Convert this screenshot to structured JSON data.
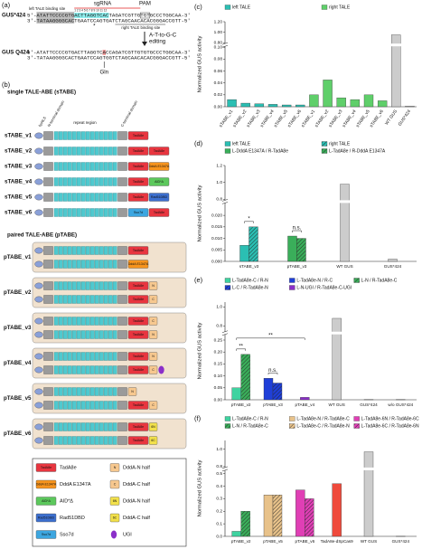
{
  "panel_a": {
    "label": "(a)",
    "seq_name": "GUS*424",
    "top_seq": "5'-ATATTCCCCGTGACTTAGGTCACTAGATCGTTGTGTGCCCTGGCAA-3'",
    "bottom_seq": "3'-TATAAGGGGCACTGAATCCAGTGATCTAGCAACACACGGGACCGTT-5'",
    "left_site": "left TALE binding site",
    "numbers": "1 2 3 4 5 6 7 8 9 10 11 12",
    "sgrna": "sgRNA",
    "pam": "PAM",
    "right_site": "right TALE binding site",
    "star": "*",
    "edit_label": [
      "A-T-to-G-C",
      "editing"
    ],
    "edited_name": "GUS Q424",
    "edited_top": "5'-ATATTCCCCGTGACTTAGGTCACCAGATCGTTGTGTGCCCTGGCAA-3'",
    "edited_bottom": "3'-TATAAGGGGCACTGAATCCAGTGGTCTAGCAACACACGGGACCGTT-5'",
    "gln": "Gln"
  },
  "panel_b": {
    "label": "(b)",
    "single_title": "single TALE-ABE (sTABE)",
    "header": [
      "bpNLS",
      "N-terminal domain",
      "repeat region",
      "C-terminal domain"
    ],
    "single": [
      {
        "name": "sTABE_v1",
        "effectors": [
          {
            "text": "TadA8e",
            "color": "#e8353f"
          }
        ]
      },
      {
        "name": "sTABE_v2",
        "effectors": [
          {
            "text": "TadA8e",
            "color": "#e8353f"
          },
          {
            "text": "TadA8e",
            "color": "#e8353f"
          }
        ]
      },
      {
        "name": "sTABE_v3",
        "effectors": [
          {
            "text": "TadA8e",
            "color": "#e8353f"
          },
          {
            "text": "DddA E1347A",
            "color": "#f7941d"
          }
        ]
      },
      {
        "name": "sTABE_v4",
        "effectors": [
          {
            "text": "TadA8e",
            "color": "#e8353f"
          },
          {
            "text": "AID*Δ",
            "color": "#5cc85c"
          }
        ]
      },
      {
        "name": "sTABE_v5",
        "effectors": [
          {
            "text": "TadA8e",
            "color": "#e8353f"
          },
          {
            "text": "Rad51DBD",
            "color": "#3c6fcf"
          }
        ]
      },
      {
        "name": "sTABE_v6",
        "effectors": [
          {
            "text": "Sso7d",
            "color": "#3ca6e0"
          },
          {
            "text": "TadA8e",
            "color": "#e8353f"
          }
        ]
      }
    ],
    "paired_title": "paired TALE-ABE (pTABE)",
    "paired": [
      {
        "name": "pTABE_v1",
        "rows": [
          [
            {
              "text": "TadA8e",
              "color": "#e8353f"
            }
          ],
          [
            {
              "text": "DddA E1347A",
              "color": "#f7941d"
            }
          ]
        ]
      },
      {
        "name": "pTABE_v2",
        "rows": [
          [
            {
              "text": "TadA8e",
              "color": "#e8353f"
            },
            {
              "text": "N",
              "color": "#f7c88f"
            }
          ],
          [
            {
              "text": "TadA8e",
              "color": "#e8353f"
            },
            {
              "text": "C",
              "color": "#f7c88f"
            }
          ]
        ]
      },
      {
        "name": "pTABE_v3",
        "rows": [
          [
            {
              "text": "TadA8e",
              "color": "#e8353f"
            },
            {
              "text": "C",
              "color": "#f7c88f"
            }
          ],
          [
            {
              "text": "TadA8e",
              "color": "#e8353f"
            },
            {
              "text": "N",
              "color": "#f7c88f"
            }
          ]
        ]
      },
      {
        "name": "pTABE_v4",
        "rows": [
          [
            {
              "text": "TadA8e",
              "color": "#e8353f"
            },
            {
              "text": "N",
              "color": "#f7c88f"
            }
          ],
          [
            {
              "text": "TadA8e",
              "color": "#e8353f"
            },
            {
              "text": "C",
              "color": "#f7c88f"
            },
            {
              "color": "#8b2fc9"
            }
          ]
        ]
      },
      {
        "name": "pTABE_v5",
        "rows": [
          [
            {
              "text": "N",
              "color": "#f7c88f"
            }
          ],
          [
            {
              "text": "TadA8e",
              "color": "#e8353f"
            },
            {
              "text": "C",
              "color": "#f7c88f"
            }
          ]
        ]
      },
      {
        "name": "pTABE_v6",
        "rows": [
          [
            {
              "text": "TadA8e",
              "color": "#e8353f"
            },
            {
              "text": "6N",
              "color": "#f2e04a"
            }
          ],
          [
            {
              "text": "TadA8e",
              "color": "#e8353f"
            },
            {
              "text": "6C",
              "color": "#f2e04a"
            }
          ]
        ]
      }
    ],
    "legend": [
      {
        "symbol": "TadA8e",
        "text": "TadA8e",
        "color": "#e8353f"
      },
      {
        "symbol": "N",
        "text": "DddA-N half",
        "color": "#f7c88f"
      },
      {
        "symbol": "DddA E1347A",
        "text": "DddA E1347A",
        "color": "#f7941d"
      },
      {
        "symbol": "C",
        "text": "DddA-C half",
        "color": "#f7c88f"
      },
      {
        "symbol": "AID*Δ",
        "text": "AID*Δ",
        "color": "#5cc85c"
      },
      {
        "symbol": "6N",
        "text": "DddA-N half",
        "color": "#f2e04a"
      },
      {
        "symbol": "Rad51DBD",
        "text": "Rad51DBD",
        "color": "#3c6fcf"
      },
      {
        "symbol": "6C",
        "text": "DddA-C half",
        "color": "#f2e04a"
      },
      {
        "symbol": "Sso7d",
        "text": "Sso7d",
        "color": "#3ca6e0"
      },
      {
        "text": "UGI",
        "color": "#8b2fc9"
      }
    ]
  },
  "chart_data": [
    {
      "type": "bar",
      "label": "(c)",
      "ylabel": "Normalized GUS activity",
      "categories": [
        "sTABE_v1",
        "sTABE_v2",
        "sTABE_v3",
        "sTABE_v4",
        "sTABE_v5",
        "sTABE_v6",
        "sTABE_v1",
        "sTABE_v2",
        "sTABE_v3",
        "sTABE_v4",
        "sTABE_v5",
        "sTABE_v6",
        "WT GUS",
        "GUS*424"
      ],
      "series": [
        {
          "name": "left TALE",
          "color": "#2bbfb3",
          "values": [
            0.012,
            0.006,
            0.005,
            0.004,
            0.003,
            0.003,
            null,
            null,
            null,
            null,
            null,
            null,
            null,
            null
          ]
        },
        {
          "name": "right TALE",
          "color": "#5fcf6a",
          "values": [
            null,
            null,
            null,
            null,
            null,
            null,
            0.02,
            0.045,
            0.015,
            0.012,
            0.02,
            0.01,
            null,
            null
          ]
        },
        {
          "color": "#cccccc",
          "values": [
            null,
            null,
            null,
            null,
            null,
            null,
            null,
            null,
            null,
            null,
            null,
            null,
            0.95,
            0.001
          ]
        }
      ],
      "ylim": [
        0,
        1.2
      ],
      "ybreak": [
        0.1,
        0.8
      ],
      "yticks": [
        {
          "value": 0,
          "label": "0.00"
        },
        0.02,
        0.04,
        0.06,
        0.08,
        {
          "value": 0.1,
          "label": "0.10"
        },
        {
          "value": 0.8,
          "label": "0.80"
        },
        {
          "value": 1,
          "label": "1.00"
        },
        {
          "value": 1.2,
          "label": "1.20"
        }
      ]
    },
    {
      "type": "bar",
      "label": "(d)",
      "ylabel": "Normalized GUS activity",
      "categories": [
        "sTABE_v3",
        "pTABE_v3",
        "WT GUS",
        "GUS*424"
      ],
      "series": [
        {
          "name": "left TALE",
          "color": "#2bbfb3",
          "values": [
            0.007,
            null,
            null,
            null
          ]
        },
        {
          "name": "right TALE",
          "color": "#2bbfb3",
          "hatch": true,
          "values": [
            0.015,
            null,
            null,
            null
          ]
        },
        {
          "name": "L-DddA E1347A / R-TadA8e",
          "color": "#3aae5a",
          "values": [
            null,
            0.011,
            null,
            null
          ]
        },
        {
          "name": "L-TadA8e / R-DddA E1347A",
          "color": "#3aae5a",
          "hatch": true,
          "values": [
            null,
            0.01,
            null,
            null
          ]
        },
        {
          "color": "#cccccc",
          "values": [
            null,
            null,
            0.98,
            0.001
          ]
        }
      ],
      "ylim": [
        0,
        1.2
      ],
      "ybreak": [
        0.025,
        0.8
      ],
      "yticks": [
        {
          "value": 0,
          "label": "0.000"
        },
        0.005,
        {
          "value": 0.01,
          "label": "0.010"
        },
        0.015,
        {
          "value": 0.02,
          "label": "0.020"
        },
        0.8,
        {
          "value": 1,
          "label": "1.0"
        },
        1.2
      ],
      "significance": [
        "*",
        "n.s.",
        null,
        null
      ]
    },
    {
      "type": "bar",
      "label": "(e)",
      "ylabel": "Normalized GUS activity",
      "categories": [
        "pTABE_v2",
        "pTABE_v3",
        "pTABE_v4",
        "WT GUS",
        "GUS*424",
        "w/o GUS*424"
      ],
      "series": [
        {
          "name": "L-TadA8e-C / R-N",
          "color": "#3fd3a0",
          "values": [
            0.05,
            null,
            null,
            null,
            null,
            null
          ]
        },
        {
          "name": "L-TadA8e-N / R-C",
          "color": "#1f3fd8",
          "values": [
            null,
            0.09,
            null,
            null,
            null,
            null
          ]
        },
        {
          "name": "L-N / R-TadA8e-C",
          "color": "#3aae5a",
          "hatch": true,
          "values": [
            0.19,
            null,
            null,
            null,
            null,
            null
          ]
        },
        {
          "name": "L-C / R-TadA8e-N",
          "color": "#1f3fd8",
          "hatch": true,
          "values": [
            null,
            0.07,
            null,
            null,
            null,
            null
          ]
        },
        {
          "name": "L-N-UGI / R-TadA8e-C-UGI",
          "color": "#8b2fc9",
          "values": [
            null,
            null,
            0.01,
            null,
            null,
            null
          ]
        },
        {
          "color": "#cccccc",
          "values": [
            null,
            null,
            null,
            0.88,
            0.001,
            0.001
          ]
        }
      ],
      "ylim": [
        0,
        1.05
      ],
      "ybreak": [
        0.27,
        0.75
      ],
      "yticks": [
        {
          "value": 0,
          "label": "0.00"
        },
        0.05,
        {
          "value": 0.1,
          "label": "0.10"
        },
        0.15,
        {
          "value": 0.2,
          "label": "0.20"
        },
        0.25,
        0.8,
        {
          "value": 1,
          "label": "1.0"
        }
      ],
      "significance": [
        "**",
        "n.s.",
        null,
        null,
        null,
        null
      ],
      "comparisons": [
        {
          "text": "**",
          "from": "pTABE_v2",
          "to": "pTABE_v4"
        }
      ]
    },
    {
      "type": "bar",
      "label": "(f)",
      "ylabel": "Normalized GUS activity",
      "categories": [
        "pTABE_v2",
        "pTABE_v5",
        "pTABE_v6",
        "TadA8e-dSpCas9",
        "WT GUS",
        "GUS*424"
      ],
      "series": [
        {
          "name": "L-TadA8e-C / R-N",
          "color": "#3fd3a0",
          "values": [
            0.04,
            null,
            null,
            null,
            null,
            null
          ]
        },
        {
          "name": "L-TadA8e-N / R-TadA8e-C",
          "color": "#e8c28a",
          "values": [
            null,
            0.33,
            null,
            null,
            null,
            null
          ]
        },
        {
          "name": "L-TadA8e-6N / R-TadA8e-6C",
          "color": "#e03fb5",
          "values": [
            null,
            null,
            0.37,
            null,
            null,
            null
          ]
        },
        {
          "name": "L-N / R-TadA8e-C",
          "color": "#3aae5a",
          "hatch": true,
          "values": [
            0.2,
            null,
            null,
            null,
            null,
            null
          ]
        },
        {
          "name": "L-TadA8e-C / R-TadA8e-N",
          "color": "#e8c28a",
          "hatch": true,
          "values": [
            null,
            0.33,
            null,
            null,
            null,
            null
          ]
        },
        {
          "name": "L-TadA8e-6C / R-TadA8e-6N",
          "color": "#e03fb5",
          "hatch": true,
          "values": [
            null,
            null,
            0.3,
            null,
            null,
            null
          ]
        },
        {
          "color": "#ef4a3c",
          "values": [
            null,
            null,
            null,
            0.42,
            null,
            null
          ]
        },
        {
          "color": "#cccccc",
          "values": [
            null,
            null,
            null,
            null,
            0.97,
            0.001
          ]
        }
      ],
      "ylim": [
        0,
        1.1
      ],
      "ybreak": [
        0.52,
        0.8
      ],
      "yticks": [
        {
          "value": 0,
          "label": "0.0"
        },
        0.1,
        0.2,
        0.3,
        0.4,
        0.5,
        0.8,
        {
          "value": 1,
          "label": "1.0"
        }
      ]
    }
  ]
}
